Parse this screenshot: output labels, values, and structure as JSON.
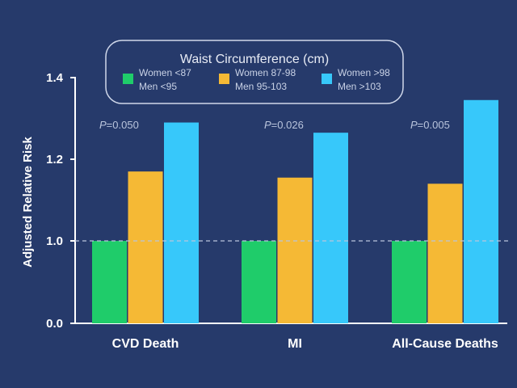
{
  "chart_data": {
    "type": "bar",
    "title": "",
    "ylabel": "Adjusted Relative Risk",
    "xlabel": "",
    "ylim": [
      0.0,
      1.4
    ],
    "yticks": [
      "0.0",
      "1.0",
      "1.2",
      "1.4"
    ],
    "reference_line": 1.0,
    "legend": {
      "title": "Waist Circumference (cm)",
      "entries": [
        {
          "line1": "Women <87",
          "line2": "Men <95",
          "color": "#1fcc6a"
        },
        {
          "line1": "Women 87-98",
          "line2": "Men 95-103",
          "color": "#f5b935"
        },
        {
          "line1": "Women >98",
          "line2": "Men >103",
          "color": "#37c8fa"
        }
      ]
    },
    "categories": [
      "CVD Death",
      "MI",
      "All-Cause Deaths"
    ],
    "p_values": [
      {
        "prefix": "P",
        "value": "=0.050"
      },
      {
        "prefix": "P",
        "value": "=0.026"
      },
      {
        "prefix": "P",
        "value": "=0.005"
      }
    ],
    "series": [
      {
        "name": "Women <87 / Men <95",
        "color": "#1fcc6a",
        "values": [
          1.0,
          1.0,
          1.0
        ]
      },
      {
        "name": "Women 87-98 / Men 95-103",
        "color": "#f5b935",
        "values": [
          1.17,
          1.155,
          1.14
        ]
      },
      {
        "name": "Women >98 / Men >103",
        "color": "#37c8fa",
        "values": [
          1.29,
          1.265,
          1.345
        ]
      }
    ]
  }
}
